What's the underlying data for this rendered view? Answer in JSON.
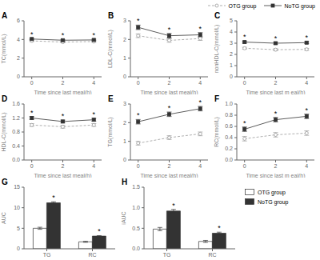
{
  "chart_data": [
    {
      "type": "line",
      "title": "A",
      "xlabel": "Time since last meal(h)",
      "ylabel": "TC(mmol/L)",
      "x": [
        0,
        2,
        4
      ],
      "xlim": [
        -0.5,
        4.5
      ],
      "xticks": [
        0,
        2,
        4
      ],
      "ylim": [
        0,
        6
      ],
      "yticks": [
        0,
        2,
        4,
        6
      ],
      "series": [
        {
          "name": "OTG group",
          "color": "#999999",
          "marker": "o",
          "line_style": "dashed",
          "values": [
            3.85,
            3.72,
            3.78
          ],
          "error": [
            0.08,
            0.08,
            0.08
          ]
        },
        {
          "name": "NoTG group",
          "color": "#333333",
          "marker": "s",
          "line_style": "solid",
          "values": [
            4.05,
            3.92,
            3.95
          ],
          "error": [
            0.08,
            0.08,
            0.08
          ]
        }
      ],
      "annotations": [
        {
          "text": "*",
          "x": 0,
          "series": "NoTG group"
        },
        {
          "text": "*",
          "x": 2,
          "series": "NoTG group"
        },
        {
          "text": "*",
          "x": 4,
          "series": "NoTG group"
        }
      ]
    },
    {
      "type": "line",
      "title": "B",
      "xlabel": "Time since last meal(h)",
      "ylabel": "LDL-C(mmol/L)",
      "x": [
        0,
        2,
        4
      ],
      "xlim": [
        -0.5,
        4.5
      ],
      "xticks": [
        0,
        2,
        4
      ],
      "ylim": [
        0,
        3
      ],
      "yticks": [
        0,
        1,
        2,
        3
      ],
      "series": [
        {
          "name": "OTG group",
          "color": "#999999",
          "marker": "o",
          "line_style": "dashed",
          "values": [
            2.2,
            1.95,
            2.05
          ],
          "error": [
            0.1,
            0.1,
            0.1
          ]
        },
        {
          "name": "NoTG group",
          "color": "#333333",
          "marker": "s",
          "line_style": "solid",
          "values": [
            2.65,
            2.2,
            2.25
          ],
          "error": [
            0.12,
            0.12,
            0.12
          ]
        }
      ],
      "annotations": [
        {
          "text": "*",
          "x": 0,
          "series": "NoTG group"
        },
        {
          "text": "*",
          "x": 2,
          "series": "NoTG group"
        },
        {
          "text": "*",
          "x": 4,
          "series": "NoTG group"
        }
      ]
    },
    {
      "type": "line",
      "title": "C",
      "xlabel": "Time since last m eal(h)",
      "ylabel": "nonHDL-C(mmol/L)",
      "x": [
        0,
        2,
        4
      ],
      "xlim": [
        -0.5,
        4.5
      ],
      "xticks": [
        0,
        2,
        4
      ],
      "ylim": [
        0,
        5
      ],
      "yticks": [
        0,
        1,
        2,
        3,
        4,
        5
      ],
      "legend": "upper right",
      "series": [
        {
          "name": "OTG group",
          "color": "#999999",
          "marker": "o",
          "line_style": "dashed",
          "values": [
            2.55,
            2.42,
            2.45
          ],
          "error": [
            0.09,
            0.09,
            0.09
          ]
        },
        {
          "name": "NoTG group",
          "color": "#333333",
          "marker": "s",
          "line_style": "solid",
          "values": [
            3.1,
            3.0,
            3.05
          ],
          "error": [
            0.09,
            0.09,
            0.09
          ]
        }
      ],
      "annotations": [
        {
          "text": "*",
          "x": 0,
          "series": "NoTG group"
        },
        {
          "text": "*",
          "x": 2,
          "series": "NoTG group"
        },
        {
          "text": "*",
          "x": 4,
          "series": "NoTG group"
        }
      ]
    },
    {
      "type": "line",
      "title": "D",
      "xlabel": "Time since last meal(h)",
      "ylabel": "HDL-C(mmol/L)",
      "x": [
        0,
        2,
        4
      ],
      "xlim": [
        -0.5,
        4.5
      ],
      "xticks": [
        0,
        2,
        4
      ],
      "ylim": [
        0.0,
        1.6
      ],
      "yticks": [
        {
          "value": 0,
          "label": "0.0"
        },
        {
          "value": 0.4,
          "label": "0.4"
        },
        {
          "value": 0.8,
          "label": "0.8"
        },
        {
          "value": 1.2,
          "label": "1.2"
        },
        {
          "value": 1.6,
          "label": "1.6"
        }
      ],
      "series": [
        {
          "name": "OTG group",
          "color": "#999999",
          "marker": "o",
          "line_style": "dashed",
          "values": [
            1.0,
            0.95,
            1.0
          ],
          "error": [
            0.04,
            0.04,
            0.04
          ]
        },
        {
          "name": "NoTG group",
          "color": "#333333",
          "marker": "s",
          "line_style": "solid",
          "values": [
            1.2,
            1.1,
            1.15
          ],
          "error": [
            0.04,
            0.04,
            0.04
          ]
        }
      ],
      "annotations": [
        {
          "text": "*",
          "x": 0,
          "series": "NoTG group"
        },
        {
          "text": "*",
          "x": 2,
          "series": "NoTG group"
        },
        {
          "text": "*",
          "x": 4,
          "series": "NoTG group"
        }
      ]
    },
    {
      "type": "line",
      "title": "E",
      "xlabel": "Time since last meal(h)",
      "ylabel": "TG(mmol/L)",
      "x": [
        0,
        2,
        4
      ],
      "xlim": [
        -0.5,
        4.5
      ],
      "xticks": [
        0,
        2,
        4
      ],
      "ylim": [
        0,
        3
      ],
      "yticks": [
        0,
        1,
        2,
        3
      ],
      "series": [
        {
          "name": "OTG group",
          "color": "#999999",
          "marker": "o",
          "line_style": "dashed",
          "values": [
            0.9,
            1.2,
            1.4
          ],
          "error": [
            0.1,
            0.1,
            0.1
          ]
        },
        {
          "name": "NoTG group",
          "color": "#333333",
          "marker": "s",
          "line_style": "solid",
          "values": [
            2.05,
            2.45,
            2.75
          ],
          "error": [
            0.12,
            0.12,
            0.12
          ]
        }
      ],
      "annotations": [
        {
          "text": "*",
          "x": 0,
          "series": "NoTG group"
        },
        {
          "text": "*",
          "x": 2,
          "series": "NoTG group"
        },
        {
          "text": "*",
          "x": 4,
          "series": "NoTG group"
        }
      ]
    },
    {
      "type": "line",
      "title": "F",
      "xlabel": "Time since last m eal(h)",
      "ylabel": "RC(mmol/L)",
      "x": [
        0,
        2,
        4
      ],
      "xlim": [
        -0.5,
        4.5
      ],
      "xticks": [
        0,
        2,
        4
      ],
      "ylim": [
        0.0,
        1.0
      ],
      "yticks": [
        {
          "value": 0,
          "label": "0.0"
        },
        {
          "value": 0.2,
          "label": "0.2"
        },
        {
          "value": 0.4,
          "label": "0.4"
        },
        {
          "value": 0.6,
          "label": "0.6"
        },
        {
          "value": 0.8,
          "label": "0.8"
        },
        {
          "value": 1.0,
          "label": "1.0"
        }
      ],
      "series": [
        {
          "name": "OTG group",
          "color": "#999999",
          "marker": "o",
          "line_style": "dashed",
          "values": [
            0.38,
            0.45,
            0.48
          ],
          "error": [
            0.04,
            0.04,
            0.04
          ]
        },
        {
          "name": "NoTG group",
          "color": "#333333",
          "marker": "s",
          "line_style": "solid",
          "values": [
            0.55,
            0.72,
            0.78
          ],
          "error": [
            0.04,
            0.04,
            0.04
          ]
        }
      ],
      "annotations": [
        {
          "text": "*",
          "x": 0,
          "series": "NoTG group"
        },
        {
          "text": "*",
          "x": 2,
          "series": "NoTG group"
        },
        {
          "text": "*",
          "x": 4,
          "series": "NoTG group"
        }
      ]
    },
    {
      "type": "bar",
      "title": "G",
      "ylabel": "AUC",
      "categories": [
        "TG",
        "RC"
      ],
      "ylim": [
        0,
        15
      ],
      "yticks": [
        0,
        5,
        10,
        15
      ],
      "series": [
        {
          "name": "OTG group",
          "color": "#ffffff",
          "values": [
            5.0,
            1.7
          ],
          "error": [
            0.25,
            0.12
          ]
        },
        {
          "name": "NoTG group",
          "color": "#333333",
          "values": [
            11.2,
            3.1
          ],
          "error": [
            0.25,
            0.12
          ]
        }
      ],
      "annotations": [
        {
          "text": "*",
          "category": "TG",
          "series": "NoTG group"
        },
        {
          "text": "*",
          "category": "RC",
          "series": "NoTG group"
        }
      ]
    },
    {
      "type": "bar",
      "title": "H",
      "ylabel": "iAUC",
      "categories": [
        "TG",
        "RC"
      ],
      "ylim": [
        0.0,
        1.5
      ],
      "yticks": [
        {
          "value": 0,
          "label": "0.0"
        },
        {
          "value": 0.5,
          "label": "0.5"
        },
        {
          "value": 1.0,
          "label": "1.0"
        },
        {
          "value": 1.5,
          "label": "1.5"
        }
      ],
      "legend": "right",
      "series": [
        {
          "name": "OTG group",
          "color": "#ffffff",
          "values": [
            0.48,
            0.18
          ],
          "error": [
            0.04,
            0.025
          ]
        },
        {
          "name": "NoTG group",
          "color": "#333333",
          "values": [
            0.92,
            0.38
          ],
          "error": [
            0.04,
            0.025
          ]
        }
      ],
      "annotations": [
        {
          "text": "*",
          "category": "TG",
          "series": "NoTG group"
        },
        {
          "text": "*",
          "category": "RC",
          "series": "NoTG group"
        }
      ]
    }
  ]
}
